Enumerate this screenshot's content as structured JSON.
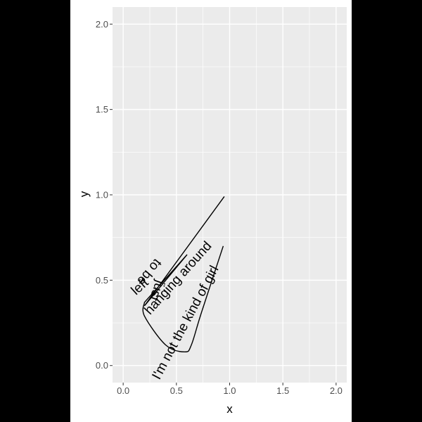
{
  "chart_data": {
    "type": "line",
    "xlabel": "x",
    "ylabel": "y",
    "xlim": [
      -0.1,
      2.1
    ],
    "ylim": [
      -0.1,
      2.1
    ],
    "x_ticks": [
      "0.0",
      "0.5",
      "1.0",
      "1.5",
      "2.0"
    ],
    "y_ticks": [
      "0.0",
      "0.5",
      "1.0",
      "1.5",
      "2.0"
    ],
    "grid": true,
    "theme": {
      "panel_bg": "#EBEBEB",
      "grid_color": "#FFFFFF",
      "line_color": "#000000",
      "axis_text_color": "#4D4D4D"
    },
    "path": [
      [
        0.95,
        0.99
      ],
      [
        0.2,
        0.35
      ],
      [
        0.6,
        0.65
      ],
      [
        0.2,
        0.37
      ],
      [
        0.2,
        0.29
      ],
      [
        0.4,
        0.12
      ],
      [
        0.58,
        0.08
      ],
      [
        0.64,
        0.12
      ],
      [
        0.73,
        0.3
      ],
      [
        0.94,
        0.7
      ]
    ],
    "text_along_path": "I'm not the kind of girl to be left just hanging around",
    "text_segments": [
      {
        "text": "I'm not the kind of girl",
        "x": 0.59,
        "y": 0.25,
        "angle": -62
      },
      {
        "text": "to be",
        "x": 0.24,
        "y": 0.55,
        "angle": 130
      },
      {
        "text": "left",
        "x": 0.16,
        "y": 0.46,
        "angle": -42
      },
      {
        "text": "just",
        "x": 0.31,
        "y": 0.44,
        "angle": 110
      },
      {
        "text": "hanging around",
        "x": 0.52,
        "y": 0.51,
        "angle": -48
      }
    ]
  }
}
